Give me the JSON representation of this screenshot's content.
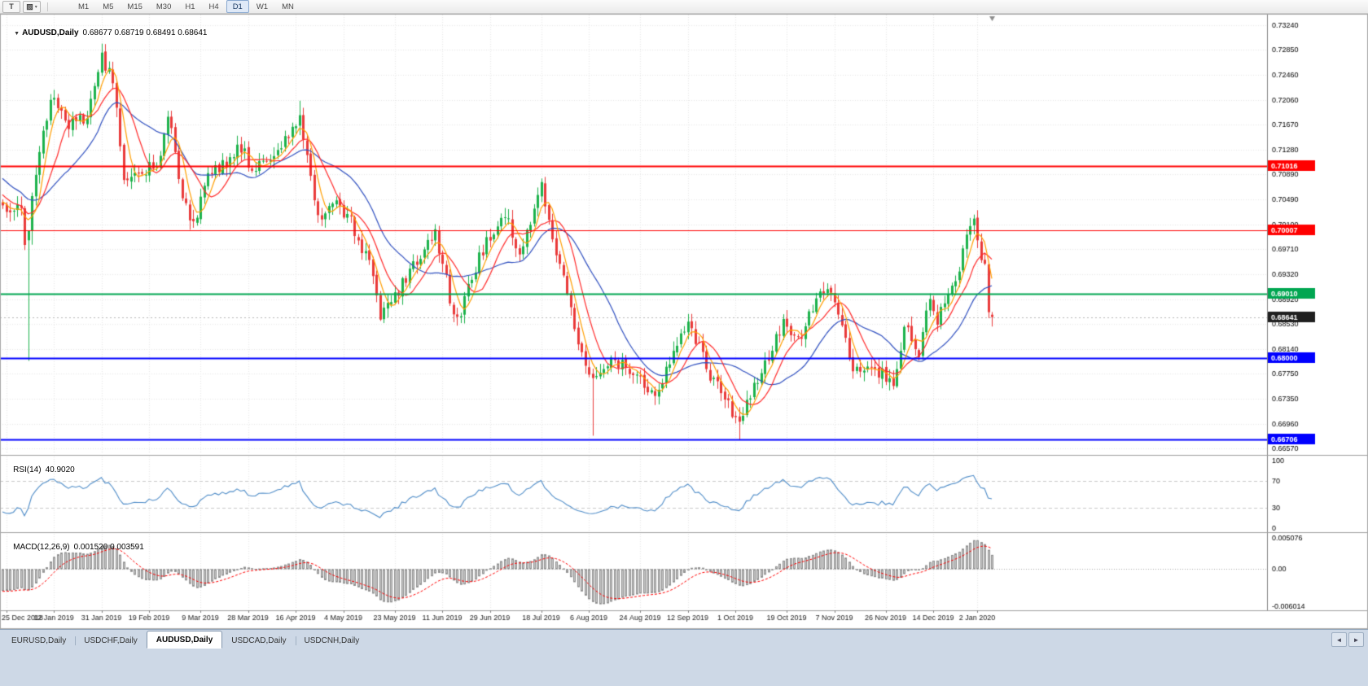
{
  "toolbar": {
    "templates_button_glyph": "T",
    "styles_button_glyph": "▨",
    "styles_button_caret": "▾",
    "timeframes": [
      "M1",
      "M5",
      "M15",
      "M30",
      "H1",
      "H4",
      "D1",
      "W1",
      "MN"
    ],
    "active_timeframe": "D1"
  },
  "chart": {
    "header": {
      "menu_icon": "▼",
      "symbol_period": "AUDUSD,Daily",
      "ohlc": "0.68677 0.68719 0.68491 0.68641"
    },
    "price_axis": {
      "ticks": [
        {
          "label": "0.73240",
          "value": 0.7324
        },
        {
          "label": "0.72850",
          "value": 0.7285
        },
        {
          "label": "0.72460",
          "value": 0.7246
        },
        {
          "label": "0.72060",
          "value": 0.7206
        },
        {
          "label": "0.71670",
          "value": 0.7167
        },
        {
          "label": "0.71280",
          "value": 0.7128
        },
        {
          "label": "0.70890",
          "value": 0.7089
        },
        {
          "label": "0.70490",
          "value": 0.7049
        },
        {
          "label": "0.70100",
          "value": 0.701
        },
        {
          "label": "0.69710",
          "value": 0.6971
        },
        {
          "label": "0.69320",
          "value": 0.6932
        },
        {
          "label": "0.68920",
          "value": 0.6892
        },
        {
          "label": "0.68530",
          "value": 0.6853
        },
        {
          "label": "0.68140",
          "value": 0.6814
        },
        {
          "label": "0.67750",
          "value": 0.6775
        },
        {
          "label": "0.67350",
          "value": 0.6735
        },
        {
          "label": "0.66960",
          "value": 0.6696
        },
        {
          "label": "0.66570",
          "value": 0.6657
        }
      ]
    },
    "hlines": [
      {
        "label": "0.71016",
        "value": 0.71016,
        "color": "#FF0000",
        "width": 2
      },
      {
        "label": "0.70007",
        "value": 0.70007,
        "color": "#FF0000",
        "width": 1
      },
      {
        "label": "0.69010",
        "value": 0.6901,
        "color": "#00A651",
        "width": 2
      },
      {
        "label": "0.68000",
        "value": 0.68,
        "color": "#0000FF",
        "width": 2
      },
      {
        "label": "0.66706",
        "value": 0.66706,
        "color": "#0000FF",
        "width": 2
      }
    ],
    "current_price": {
      "label": "0.68641",
      "value": 0.68641,
      "tag_color": "#1F1F1F"
    },
    "date_axis": [
      {
        "label": "25 Dec 2018",
        "bar": 1
      },
      {
        "label": "12 Jan 2019",
        "bar": 14
      },
      {
        "label": "31 Jan 2019",
        "bar": 27
      },
      {
        "label": "19 Feb 2019",
        "bar": 40
      },
      {
        "label": "9 Mar 2019",
        "bar": 54
      },
      {
        "label": "28 Mar 2019",
        "bar": 67
      },
      {
        "label": "16 Apr 2019",
        "bar": 80
      },
      {
        "label": "4 May 2019",
        "bar": 93
      },
      {
        "label": "23 May 2019",
        "bar": 107
      },
      {
        "label": "11 Jun 2019",
        "bar": 120
      },
      {
        "label": "29 Jun 2019",
        "bar": 133
      },
      {
        "label": "18 Jul 2019",
        "bar": 147
      },
      {
        "label": "6 Aug 2019",
        "bar": 160
      },
      {
        "label": "24 Aug 2019",
        "bar": 174
      },
      {
        "label": "12 Sep 2019",
        "bar": 187
      },
      {
        "label": "1 Oct 2019",
        "bar": 200
      },
      {
        "label": "19 Oct 2019",
        "bar": 214
      },
      {
        "label": "7 Nov 2019",
        "bar": 227
      },
      {
        "label": "26 Nov 2019",
        "bar": 241
      },
      {
        "label": "14 Dec 2019",
        "bar": 254
      },
      {
        "label": "2 Jan 2020",
        "bar": 266
      }
    ]
  },
  "indicators": {
    "rsi": {
      "name": "RSI(14)",
      "value": "40.9020",
      "period": 14,
      "line_color": "#4E8CC8",
      "levels": [
        {
          "label": "100",
          "value": 100
        },
        {
          "label": "70",
          "value": 70
        },
        {
          "label": "30",
          "value": 30
        },
        {
          "label": "0",
          "value": 0
        }
      ]
    },
    "macd": {
      "name": "MACD(12,26,9)",
      "value": "0.001520 0.003591",
      "fast": 12,
      "slow": 26,
      "signal": 9,
      "hist_color": "#C9C9C9",
      "hist_border": "#8F8F8F",
      "signal_color": "#FF0000",
      "axis": [
        {
          "label": "0.005076",
          "value": 0.005076
        },
        {
          "label": "0.00",
          "value": 0
        },
        {
          "label": "-0.006014",
          "value": -0.006014
        }
      ]
    }
  },
  "tabs": {
    "items": [
      "EURUSD,Daily",
      "USDCHF,Daily",
      "AUDUSD,Daily",
      "USDCAD,Daily",
      "USDCNH,Daily"
    ],
    "active": "AUDUSD,Daily",
    "scroll_left_icon": "◄",
    "scroll_right_icon": "►"
  },
  "chart_data": {
    "type": "candlestick",
    "symbol": "AUDUSD",
    "period": "Daily",
    "last_bar": {
      "open": 0.68677,
      "high": 0.68719,
      "low": 0.68491,
      "close": 0.68641
    },
    "visible_price_range": [
      0.6657,
      0.7324
    ],
    "bars_total": 271,
    "warmup_bars": 60,
    "up_color": "#1CB24B",
    "down_color": "#E93A3A",
    "anchors": [
      [
        -60,
        0.726
      ],
      [
        -48,
        0.731
      ],
      [
        -36,
        0.724
      ],
      [
        -22,
        0.715
      ],
      [
        -10,
        0.708
      ],
      [
        0,
        0.7036
      ],
      [
        5,
        0.704
      ],
      [
        6,
        0.6983
      ],
      [
        7,
        0.7
      ],
      [
        8,
        0.706
      ],
      [
        10,
        0.712
      ],
      [
        13,
        0.7216
      ],
      [
        18,
        0.717
      ],
      [
        23,
        0.7175
      ],
      [
        27,
        0.7272
      ],
      [
        30,
        0.7235
      ],
      [
        33,
        0.7088
      ],
      [
        37,
        0.7095
      ],
      [
        42,
        0.71
      ],
      [
        45,
        0.7187
      ],
      [
        48,
        0.7079
      ],
      [
        52,
        0.7009
      ],
      [
        56,
        0.709
      ],
      [
        62,
        0.7114
      ],
      [
        65,
        0.7134
      ],
      [
        68,
        0.7096
      ],
      [
        75,
        0.7128
      ],
      [
        81,
        0.7177
      ],
      [
        86,
        0.7015
      ],
      [
        90,
        0.7052
      ],
      [
        95,
        0.7013
      ],
      [
        100,
        0.6944
      ],
      [
        103,
        0.6866
      ],
      [
        105,
        0.688
      ],
      [
        110,
        0.6925
      ],
      [
        118,
        0.6998
      ],
      [
        123,
        0.687
      ],
      [
        125,
        0.6876
      ],
      [
        130,
        0.696
      ],
      [
        137,
        0.7027
      ],
      [
        141,
        0.6958
      ],
      [
        147,
        0.7074
      ],
      [
        152,
        0.6945
      ],
      [
        156,
        0.6845
      ],
      [
        161,
        0.6763
      ],
      [
        165,
        0.6795
      ],
      [
        171,
        0.6785
      ],
      [
        178,
        0.6733
      ],
      [
        180,
        0.6762
      ],
      [
        187,
        0.6866
      ],
      [
        193,
        0.6765
      ],
      [
        196,
        0.6746
      ],
      [
        200,
        0.67
      ],
      [
        201,
        0.6706
      ],
      [
        208,
        0.679
      ],
      [
        213,
        0.6855
      ],
      [
        218,
        0.6825
      ],
      [
        222,
        0.6902
      ],
      [
        227,
        0.6897
      ],
      [
        232,
        0.6785
      ],
      [
        237,
        0.6785
      ],
      [
        243,
        0.6764
      ],
      [
        246,
        0.685
      ],
      [
        250,
        0.6808
      ],
      [
        253,
        0.69
      ],
      [
        255,
        0.686
      ],
      [
        259,
        0.6908
      ],
      [
        265,
        0.7021
      ],
      [
        266,
        0.6988
      ],
      [
        267,
        0.695
      ],
      [
        268,
        0.6938
      ],
      [
        269,
        0.6865
      ],
      [
        270,
        0.68641
      ]
    ],
    "special_bars": [
      {
        "bar": 7,
        "open": 0.6985,
        "low": 0.6795,
        "close": 0.7
      },
      {
        "bar": 27,
        "high": 0.7295
      },
      {
        "bar": 81,
        "high": 0.7205
      },
      {
        "bar": 161,
        "low": 0.6677
      },
      {
        "bar": 201,
        "low": 0.667
      },
      {
        "bar": 270,
        "open": 0.68677,
        "high": 0.68719,
        "low": 0.68491,
        "close": 0.68641
      }
    ],
    "moving_averages": [
      {
        "period": 21,
        "method": "sma",
        "color": "#3050C0"
      },
      {
        "period": 10,
        "method": "sma",
        "color": "#FF2A2A"
      },
      {
        "period": 5,
        "method": "sma",
        "color": "#FF9E00"
      }
    ]
  }
}
